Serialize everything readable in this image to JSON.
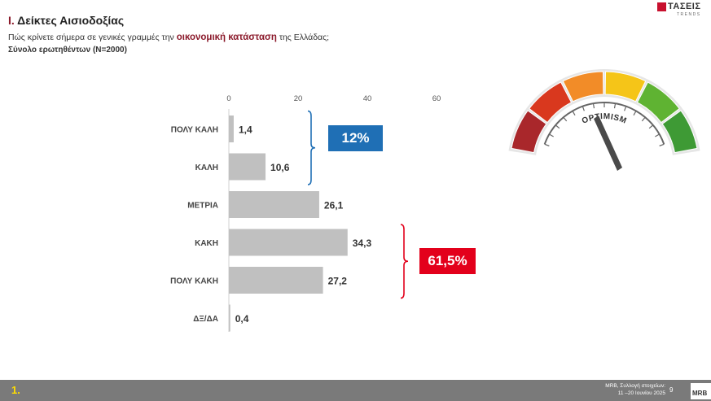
{
  "header": {
    "section_number": "Ι.",
    "title": "Δείκτες Αισιοδοξίας",
    "question_pre": "Πώς κρίνετε σήμερα σε γενικές γραμμές την ",
    "question_highlight": "οικονομική κατάσταση",
    "question_post": " της Ελλάδας;",
    "base": "Σύνολο ερωτηθέντων (N=2000)"
  },
  "logo": {
    "name": "ΤΑΣΕΙΣ",
    "sub": "TRENDS"
  },
  "chart_data": {
    "type": "bar",
    "orientation": "horizontal",
    "categories": [
      "ΠΟΛΥ ΚΑΛΗ",
      "ΚΑΛΗ",
      "ΜΕΤΡΙΑ",
      "ΚΑΚΗ",
      "ΠΟΛΥ ΚΑΚΗ",
      "ΔΞ/ΔΑ"
    ],
    "values": [
      1.4,
      10.6,
      26.1,
      34.3,
      27.2,
      0.4
    ],
    "data_labels": [
      "1,4",
      "10,6",
      "26,1",
      "34,3",
      "27,2",
      "0,4"
    ],
    "x_ticks": [
      "0",
      "20",
      "40",
      "60"
    ],
    "xlim": [
      0,
      60
    ],
    "axis_position": "top",
    "grid": false,
    "bar_color": "#c0c0c0",
    "groups": [
      {
        "label": "12%",
        "from": 0,
        "to": 1,
        "color": "#1f6fb5"
      },
      {
        "label": "61,5%",
        "from": 3,
        "to": 4,
        "color": "#e3001b"
      }
    ]
  },
  "gauge": {
    "label": "OPTIMISM",
    "segment_colors": [
      "#a9272b",
      "#d9381e",
      "#f28c28",
      "#f5c518",
      "#5fb332",
      "#3e9a35"
    ]
  },
  "footer": {
    "slide_number": "1.",
    "source_line1": "MRB, Συλλογή στοιχείων:",
    "source_line2": "11 –20 Ιουνίου 2025",
    "page": "9",
    "logo": "MRB"
  }
}
